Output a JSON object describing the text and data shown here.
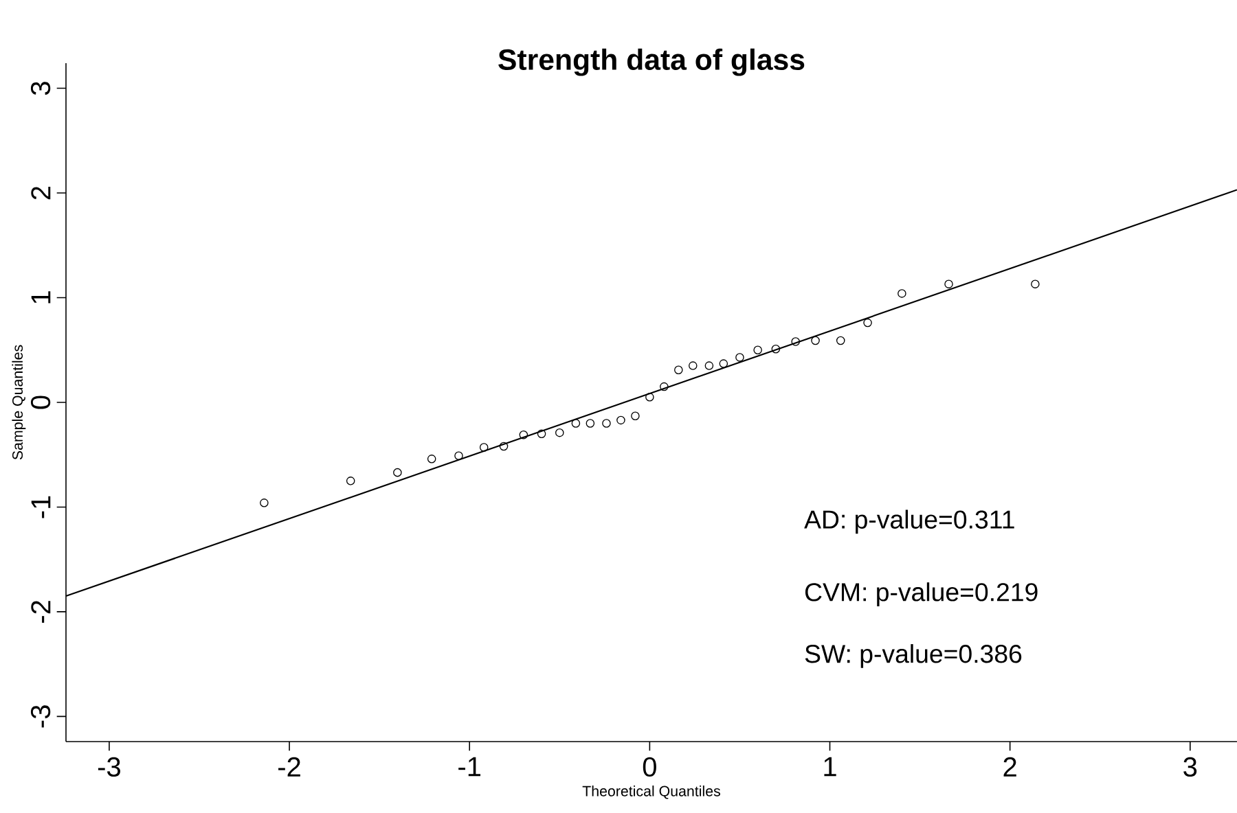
{
  "chart_data": {
    "type": "scatter",
    "title": "Strength data of glass",
    "xlabel": "Theoretical Quantiles",
    "ylabel": "Sample Quantiles",
    "xlim": [
      -3.24,
      3.26
    ],
    "ylim": [
      -3.24,
      3.24
    ],
    "xticks": [
      -3,
      -2,
      -1,
      0,
      1,
      2,
      3
    ],
    "yticks": [
      -3,
      -2,
      -1,
      0,
      1,
      2,
      3
    ],
    "annotations": [
      "AD: p-value=0.311",
      "CVM: p-value=0.219",
      "SW: p-value=0.386"
    ],
    "series": [
      {
        "marker": "circle",
        "color": "#000000",
        "x": [
          -2.14,
          -1.66,
          -1.4,
          -1.21,
          -1.06,
          -0.92,
          -0.81,
          -0.7,
          -0.6,
          -0.5,
          -0.41,
          -0.33,
          -0.24,
          -0.16,
          -0.08,
          0,
          0.08,
          0.16,
          0.24,
          0.33,
          0.41,
          0.5,
          0.6,
          0.7,
          0.81,
          0.92,
          1.06,
          1.21,
          1.4,
          1.66,
          2.14
        ],
        "values": [
          -0.96,
          -0.75,
          -0.67,
          -0.54,
          -0.51,
          -0.43,
          -0.42,
          -0.31,
          -0.3,
          -0.29,
          -0.2,
          -0.2,
          -0.2,
          -0.17,
          -0.13,
          0.05,
          0.15,
          0.31,
          0.35,
          0.35,
          0.37,
          0.43,
          0.5,
          0.51,
          0.58,
          0.59,
          0.59,
          0.76,
          1.04,
          1.13,
          1.13
        ]
      },
      {
        "type": "line",
        "color": "#000000",
        "x": [
          -3.24,
          3.26
        ],
        "values": [
          -1.85,
          2.03
        ]
      }
    ]
  }
}
